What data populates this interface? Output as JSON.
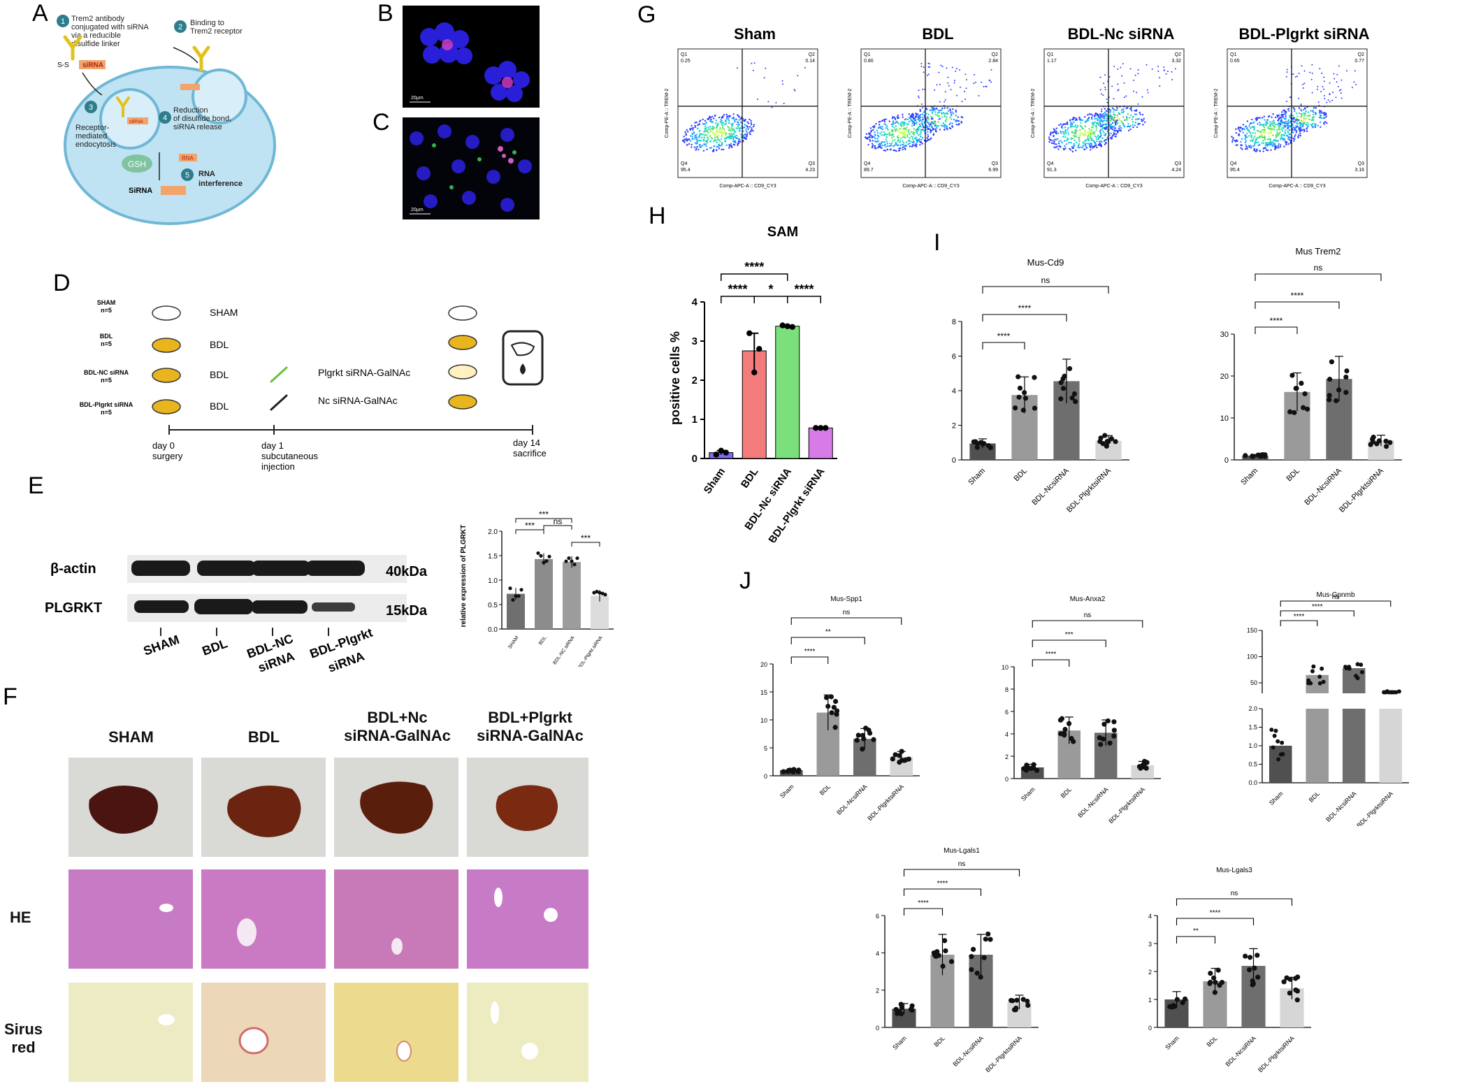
{
  "panel_letters": {
    "A": "A",
    "B": "B",
    "C": "C",
    "D": "D",
    "E": "E",
    "F": "F",
    "G": "G",
    "H": "H",
    "I": "I",
    "J": "J"
  },
  "panelA": {
    "steps": [
      {
        "n": "1",
        "text": [
          "Trem2 antibody",
          "conjugated with siRNA",
          "via a reducible",
          "disulfide linker"
        ]
      },
      {
        "n": "2",
        "text": [
          "Binding to",
          "Trem2 receptor"
        ]
      },
      {
        "n": "3",
        "text": [
          "Receptor-",
          "mediated",
          "endocytosis"
        ]
      },
      {
        "n": "4",
        "text": [
          "Reduction",
          "of disulfide bond,",
          "siRNA release"
        ]
      },
      {
        "n": "5",
        "text": [
          "RNA",
          "interference"
        ]
      }
    ],
    "ss_label": "S-S",
    "sirna_tag": "siRNA",
    "gsh": "GSH",
    "sirna_bottom": "SiRNA",
    "rna_tag": "RNA"
  },
  "panelB": {
    "scale": "20μm"
  },
  "panelC": {
    "scale": "20μm"
  },
  "panelD": {
    "groups": [
      {
        "name": "SHAM",
        "n": "n=5",
        "treat": "SHAM",
        "drug": ""
      },
      {
        "name": "BDL",
        "n": "n=5",
        "treat": "BDL",
        "drug": ""
      },
      {
        "name": "BDL-NC siRNA",
        "n": "n=5",
        "treat": "BDL",
        "drug": "Plgrkt siRNA-GalNAc"
      },
      {
        "name": "BDL-Plgrkt siRNA",
        "n": "n=5",
        "treat": "BDL",
        "drug": "Nc siRNA-GalNAc"
      }
    ],
    "timeline": [
      {
        "day": "day 0",
        "desc": [
          "surgery"
        ]
      },
      {
        "day": "day 1",
        "desc": [
          "subcutaneous",
          "injection"
        ]
      },
      {
        "day": "day 14",
        "desc": [
          "sacrifice"
        ]
      }
    ]
  },
  "panelE": {
    "blots": [
      {
        "name": "β-actin",
        "kda": "40kDa"
      },
      {
        "name": "PLGRKT",
        "kda": "15kDa"
      }
    ],
    "lanes": [
      [
        "SHAM"
      ],
      [
        "BDL"
      ],
      [
        "BDL-NC",
        "siRNA"
      ],
      [
        "BDL-Plgrkt",
        "siRNA"
      ]
    ],
    "sig": [
      "***",
      "***",
      "ns",
      "***"
    ]
  },
  "panelF": {
    "cols": [
      [
        "SHAM"
      ],
      [
        "BDL"
      ],
      [
        "BDL+Nc",
        "siRNA-GalNAc"
      ],
      [
        "BDL+Plgrkt",
        "siRNA-GalNAc"
      ]
    ],
    "rows": [
      [
        "HE"
      ],
      [
        "Sirus",
        "red"
      ]
    ]
  },
  "panelG": {
    "titles": [
      "Sham",
      "BDL",
      "BDL-Nc siRNA",
      "BDL-Plgrkt siRNA"
    ],
    "quadrants": [
      {
        "q1": "0.25",
        "q2": "0.14",
        "q3": "4.23",
        "q4": "95.4"
      },
      {
        "q1": "0.80",
        "q2": "2.84",
        "q3": "6.99",
        "q4": "89.7"
      },
      {
        "q1": "1.17",
        "q2": "3.32",
        "q3": "4.24",
        "q4": "91.3"
      },
      {
        "q1": "0.65",
        "q2": "0.77",
        "q3": "3.16",
        "q4": "95.4"
      }
    ],
    "xaxis": "Comp-APC-A :: CD9_CY3",
    "yaxis": "Comp-PE-A :: TREM-2",
    "qnames": [
      "Q1",
      "Q2",
      "Q3",
      "Q4"
    ]
  },
  "chart_data": [
    {
      "id": "E_quant",
      "type": "bar",
      "title": "",
      "ylabel": "relative expression of PLGRKT",
      "categories": [
        "SHAM",
        "BDL",
        "BDL-NC siRNA",
        "BDL-Plgrkt siRNA"
      ],
      "values": [
        0.72,
        1.43,
        1.37,
        0.68
      ],
      "ylim": [
        0,
        2.0
      ],
      "yticks": [
        "0.0",
        "0.5",
        "1.0",
        "1.5",
        "2.0"
      ],
      "colors": [
        "#6f6f6f",
        "#8c8c8c",
        "#9c9c9c",
        "#dcdcdc"
      ],
      "sig": [
        "***",
        "***",
        "ns",
        "***"
      ]
    },
    {
      "id": "H",
      "type": "bar",
      "title": "SAM",
      "ylabel": "positive cells %",
      "categories": [
        "Sham",
        "BDL",
        "BDL-Nc siRNA",
        "BDL-Plgrkt siRNA"
      ],
      "values": [
        0.15,
        2.75,
        3.38,
        0.78
      ],
      "ylim": [
        0,
        4
      ],
      "yticks": [
        "0",
        "1",
        "2",
        "3",
        "4"
      ],
      "colors": [
        "#7b6cf0",
        "#f47b7b",
        "#7be07b",
        "#d77be8"
      ],
      "points": [
        [
          0.1,
          0.2,
          0.15
        ],
        [
          3.2,
          2.2,
          2.8
        ],
        [
          3.4,
          3.38,
          3.36
        ],
        [
          0.78,
          0.78,
          0.78
        ]
      ],
      "sig": [
        "****",
        "****",
        "*",
        "****"
      ]
    },
    {
      "id": "I_cd9",
      "type": "bar",
      "title": "Mus-Cd9",
      "categories": [
        "Sham",
        "BDL",
        "BDL-NcsiRNA",
        "BDL-PlgrktsiRNA"
      ],
      "values": [
        0.95,
        3.75,
        4.55,
        1.1
      ],
      "ylim": [
        0,
        8
      ],
      "yticks": [
        "0",
        "2",
        "4",
        "6",
        "8"
      ],
      "sig": [
        "****",
        "****",
        "ns"
      ]
    },
    {
      "id": "I_trem2",
      "type": "bar",
      "title": "Mus Trem2",
      "categories": [
        "Sham",
        "BDL",
        "BDL-NcsiRNA",
        "BDL-PlgrktsiRNA"
      ],
      "values": [
        1.0,
        16.2,
        19.3,
        4.6
      ],
      "ylim": [
        0,
        30
      ],
      "yticks": [
        "0",
        "10",
        "20",
        "30"
      ],
      "sig": [
        "****",
        "****",
        "ns"
      ]
    },
    {
      "id": "J_spp1",
      "type": "bar",
      "title": "Mus-Spp1",
      "categories": [
        "Sham",
        "BDL",
        "BDL-NcsiRNA",
        "BDL-PlgrktsiRNA"
      ],
      "values": [
        1.0,
        11.3,
        6.6,
        3.4
      ],
      "ylim": [
        0,
        20
      ],
      "yticks": [
        "0",
        "5",
        "10",
        "15",
        "20"
      ],
      "sig": [
        "****",
        "**",
        "ns"
      ]
    },
    {
      "id": "J_anxa2",
      "type": "bar",
      "title": "Mus-Anxa2",
      "categories": [
        "Sham",
        "BDL",
        "BDL-NcsiRNA",
        "BDL-PlgrktsiRNA"
      ],
      "values": [
        1.0,
        4.3,
        4.1,
        1.2
      ],
      "ylim": [
        0,
        10
      ],
      "yticks": [
        "0",
        "2",
        "4",
        "6",
        "8",
        "10"
      ],
      "sig": [
        "****",
        "***",
        "ns"
      ]
    },
    {
      "id": "J_gpnmb",
      "type": "bar",
      "title": "Mus-Gpnmb",
      "categories": [
        "Sham",
        "BDL",
        "BDL-NcsiRNA",
        "BDL-PlgrktsiRNA"
      ],
      "values": [
        1.0,
        65,
        78,
        28
      ],
      "yticks_low": [
        "0.0",
        "0.5",
        "1.0",
        "1.5",
        "2.0"
      ],
      "yticks_high": [
        "50",
        "100",
        "150"
      ],
      "sig": [
        "****",
        "****",
        "ns"
      ]
    },
    {
      "id": "J_lgals1",
      "type": "bar",
      "title": "Mus-Lgals1",
      "categories": [
        "Sham",
        "BDL",
        "BDL-NcsiRNA",
        "BDL-PlgrktsiRNA"
      ],
      "values": [
        1.0,
        3.9,
        3.9,
        1.35
      ],
      "ylim": [
        0,
        6
      ],
      "yticks": [
        "0",
        "2",
        "4",
        "6"
      ],
      "sig": [
        "****",
        "****",
        "ns"
      ]
    },
    {
      "id": "J_lgals3",
      "type": "bar",
      "title": "Mus-Lgals3",
      "categories": [
        "Sham",
        "BDL",
        "BDL-NcsiRNA",
        "BDL-PlgrktsiRNA"
      ],
      "values": [
        1.0,
        1.65,
        2.2,
        1.4
      ],
      "ylim": [
        0,
        4
      ],
      "yticks": [
        "0",
        "1",
        "2",
        "3",
        "4"
      ],
      "sig": [
        "**",
        "****",
        "ns"
      ]
    }
  ]
}
